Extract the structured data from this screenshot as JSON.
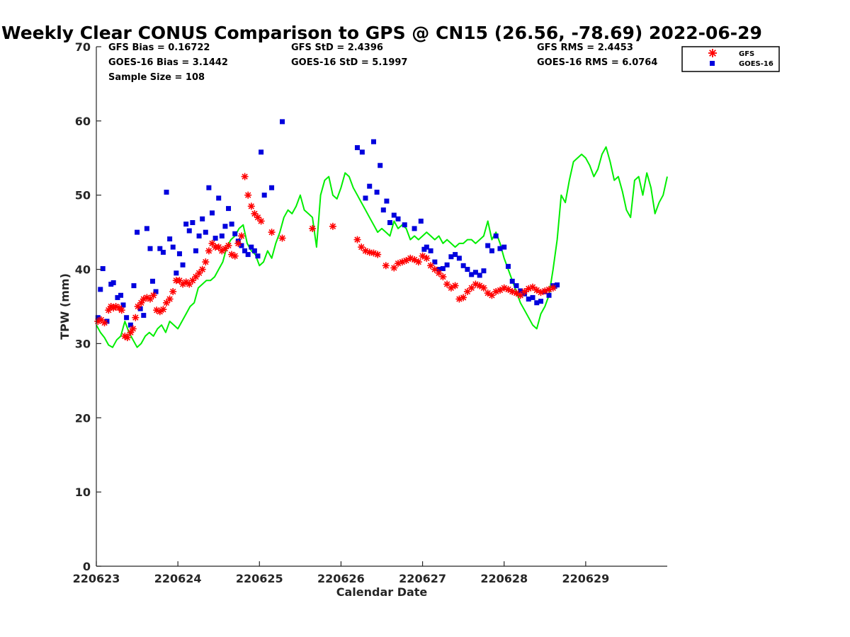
{
  "chart_data": {
    "type": "scatter",
    "title": "Weekly Clear CONUS Comparison to GPS @ CN15 (26.56, -78.69) 2022-06-29",
    "xlabel": "Calendar Date",
    "ylabel": "TPW (mm)",
    "xlim": [
      0,
      7
    ],
    "ylim": [
      0,
      70
    ],
    "x_ticks": [
      0,
      1,
      2,
      3,
      4,
      5,
      6
    ],
    "x_tick_labels": [
      "220623",
      "220624",
      "220625",
      "220626",
      "220627",
      "220628",
      "220629"
    ],
    "y_ticks": [
      0,
      10,
      20,
      30,
      40,
      50,
      60,
      70
    ],
    "grid": false,
    "legend_position": "top-right, outside plot",
    "stats": {
      "gfs_bias": "GFS Bias = 0.16722",
      "goes_bias": "GOES-16 Bias = 3.1442",
      "sample_size": "Sample Size = 108",
      "gfs_std": "GFS StD = 2.4396",
      "goes_std": "GOES-16 StD = 5.1997",
      "gfs_rms": "GFS RMS = 2.4453",
      "goes_rms": "GOES-16 RMS = 6.0764"
    },
    "gps_line": {
      "color": "#00ee00",
      "x": [
        0.0,
        0.05,
        0.1,
        0.15,
        0.2,
        0.25,
        0.3,
        0.35,
        0.4,
        0.45,
        0.5,
        0.55,
        0.6,
        0.65,
        0.7,
        0.75,
        0.8,
        0.85,
        0.9,
        0.95,
        1.0,
        1.05,
        1.1,
        1.15,
        1.2,
        1.25,
        1.3,
        1.35,
        1.4,
        1.45,
        1.5,
        1.55,
        1.6,
        1.65,
        1.7,
        1.75,
        1.8,
        1.85,
        1.9,
        1.95,
        2.0,
        2.05,
        2.1,
        2.15,
        2.2,
        2.25,
        2.3,
        2.35,
        2.4,
        2.45,
        2.5,
        2.55,
        2.6,
        2.65,
        2.7,
        2.75,
        2.8,
        2.85,
        2.9,
        2.95,
        3.0,
        3.05,
        3.1,
        3.15,
        3.2,
        3.25,
        3.3,
        3.35,
        3.4,
        3.45,
        3.5,
        3.55,
        3.6,
        3.65,
        3.7,
        3.75,
        3.8,
        3.85,
        3.9,
        3.95,
        4.0,
        4.05,
        4.1,
        4.15,
        4.2,
        4.25,
        4.3,
        4.35,
        4.4,
        4.45,
        4.5,
        4.55,
        4.6,
        4.65,
        4.7,
        4.75,
        4.8,
        4.85,
        4.9,
        4.95,
        5.0,
        5.05,
        5.1,
        5.15,
        5.2,
        5.25,
        5.3,
        5.35,
        5.4,
        5.45,
        5.5,
        5.55,
        5.6,
        5.65,
        5.7,
        5.75,
        5.8,
        5.85,
        5.9,
        5.95,
        6.0,
        6.05,
        6.1,
        6.15,
        6.2,
        6.25,
        6.3,
        6.35,
        6.4,
        6.45,
        6.5,
        6.55,
        6.6,
        6.65,
        6.7,
        6.75,
        6.8,
        6.85,
        6.9,
        6.95,
        7.0
      ],
      "values": [
        32.5,
        31.5,
        30.8,
        29.8,
        29.5,
        30.5,
        31.0,
        33.0,
        31.5,
        30.5,
        29.5,
        30.0,
        31.0,
        31.5,
        31.0,
        32.0,
        32.5,
        31.5,
        33.0,
        32.5,
        32.0,
        33.0,
        34.0,
        35.0,
        35.5,
        37.5,
        38.0,
        38.5,
        38.5,
        39.0,
        40.0,
        41.0,
        43.0,
        44.0,
        44.5,
        45.5,
        46.0,
        43.5,
        42.5,
        42.0,
        40.5,
        41.0,
        42.5,
        41.5,
        43.5,
        45.0,
        47.0,
        48.0,
        47.5,
        48.5,
        50.0,
        48.0,
        47.5,
        47.0,
        43.0,
        50.0,
        52.0,
        52.5,
        50.0,
        49.5,
        51.0,
        53.0,
        52.5,
        51.0,
        50.0,
        49.0,
        48.0,
        47.0,
        46.0,
        45.0,
        45.5,
        45.0,
        44.5,
        46.5,
        45.5,
        46.0,
        45.5,
        44.0,
        44.5,
        44.0,
        44.5,
        45.0,
        44.5,
        44.0,
        44.5,
        43.5,
        44.0,
        43.5,
        43.0,
        43.5,
        43.5,
        44.0,
        44.0,
        43.5,
        44.0,
        44.5,
        46.5,
        44.0,
        45.0,
        43.5,
        41.5,
        40.0,
        38.5,
        37.0,
        35.5,
        34.5,
        33.5,
        32.5,
        32.0,
        34.0,
        35.0,
        36.5,
        40.0,
        44.0,
        50.0,
        49.0,
        52.0,
        54.5,
        55.0,
        55.5,
        55.0,
        54.0,
        52.5,
        53.5,
        55.5,
        56.5,
        54.5,
        52.0,
        52.5,
        50.5,
        48.0,
        47.0,
        52.0,
        52.5,
        50.0,
        53.0,
        51.0,
        47.5,
        49.0,
        50.0,
        52.5
      ]
    },
    "series": [
      {
        "name": "GFS",
        "color": "#ff0000",
        "marker": "asterisk",
        "x": [
          0.02,
          0.06,
          0.1,
          0.15,
          0.18,
          0.21,
          0.24,
          0.28,
          0.31,
          0.35,
          0.38,
          0.42,
          0.45,
          0.48,
          0.51,
          0.55,
          0.58,
          0.62,
          0.66,
          0.7,
          0.74,
          0.78,
          0.82,
          0.86,
          0.9,
          0.94,
          0.98,
          1.02,
          1.06,
          1.1,
          1.14,
          1.18,
          1.22,
          1.26,
          1.3,
          1.34,
          1.38,
          1.42,
          1.46,
          1.5,
          1.54,
          1.58,
          1.62,
          1.66,
          1.7,
          1.74,
          1.78,
          1.82,
          1.86,
          1.9,
          1.94,
          1.98,
          2.02,
          2.15,
          2.28,
          2.65,
          2.9,
          3.2,
          3.25,
          3.3,
          3.35,
          3.4,
          3.45,
          3.55,
          3.65,
          3.7,
          3.75,
          3.8,
          3.85,
          3.9,
          3.95,
          4.0,
          4.05,
          4.1,
          4.15,
          4.2,
          4.25,
          4.3,
          4.35,
          4.4,
          4.45,
          4.5,
          4.55,
          4.6,
          4.65,
          4.7,
          4.75,
          4.8,
          4.85,
          4.9,
          4.95,
          5.0,
          5.05,
          5.1,
          5.15,
          5.2,
          5.25,
          5.3,
          5.35,
          5.4,
          5.45,
          5.5,
          5.55,
          5.6
        ],
        "values": [
          33.0,
          33.2,
          32.8,
          34.5,
          35.0,
          34.8,
          35.0,
          34.8,
          34.5,
          31.0,
          30.8,
          31.5,
          32.0,
          33.5,
          35.0,
          35.5,
          36.0,
          36.2,
          36.0,
          36.5,
          34.5,
          34.3,
          34.6,
          35.5,
          36.0,
          37.0,
          38.5,
          38.5,
          38.0,
          38.3,
          38.0,
          38.5,
          39.0,
          39.5,
          40.0,
          41.0,
          42.5,
          43.5,
          43.0,
          43.0,
          42.5,
          42.8,
          43.2,
          42.0,
          41.8,
          43.5,
          44.5,
          52.5,
          50.0,
          48.5,
          47.5,
          47.0,
          46.5,
          45.0,
          44.2,
          45.5,
          45.8,
          44.0,
          43.0,
          42.5,
          42.3,
          42.2,
          42.0,
          40.5,
          40.2,
          40.8,
          41.0,
          41.2,
          41.5,
          41.3,
          41.0,
          41.8,
          41.5,
          40.5,
          40.0,
          39.5,
          39.0,
          38.0,
          37.5,
          37.8,
          36.0,
          36.2,
          37.0,
          37.5,
          38.0,
          37.8,
          37.5,
          36.8,
          36.5,
          37.0,
          37.2,
          37.5,
          37.3,
          37.0,
          36.8,
          36.5,
          37.0,
          37.4,
          37.6,
          37.2,
          36.9,
          37.1,
          37.3,
          37.5
        ]
      },
      {
        "name": "GOES-16",
        "color": "#0000dd",
        "marker": "square",
        "x": [
          0.02,
          0.05,
          0.08,
          0.13,
          0.18,
          0.21,
          0.26,
          0.3,
          0.33,
          0.37,
          0.42,
          0.46,
          0.5,
          0.54,
          0.58,
          0.62,
          0.66,
          0.69,
          0.73,
          0.78,
          0.82,
          0.86,
          0.9,
          0.94,
          0.98,
          1.02,
          1.06,
          1.1,
          1.14,
          1.18,
          1.22,
          1.26,
          1.3,
          1.34,
          1.38,
          1.42,
          1.46,
          1.5,
          1.54,
          1.58,
          1.62,
          1.66,
          1.7,
          1.74,
          1.78,
          1.82,
          1.86,
          1.9,
          1.94,
          1.98,
          2.02,
          2.06,
          2.15,
          2.28,
          3.2,
          3.26,
          3.3,
          3.35,
          3.4,
          3.44,
          3.48,
          3.52,
          3.56,
          3.6,
          3.65,
          3.7,
          3.78,
          3.9,
          3.98,
          4.02,
          4.05,
          4.1,
          4.15,
          4.2,
          4.25,
          4.3,
          4.35,
          4.4,
          4.45,
          4.5,
          4.55,
          4.6,
          4.65,
          4.7,
          4.75,
          4.8,
          4.85,
          4.9,
          4.95,
          5.0,
          5.05,
          5.1,
          5.15,
          5.2,
          5.25,
          5.3,
          5.35,
          5.4,
          5.45,
          5.5,
          5.55,
          5.6,
          5.62,
          5.65
        ],
        "values": [
          33.5,
          37.3,
          40.1,
          33.0,
          38.0,
          38.2,
          36.2,
          36.5,
          35.2,
          33.5,
          32.5,
          37.8,
          45.0,
          34.7,
          33.8,
          45.5,
          42.8,
          38.4,
          37.0,
          42.8,
          42.3,
          50.4,
          44.1,
          43.0,
          39.5,
          42.1,
          40.6,
          46.1,
          45.2,
          46.3,
          42.5,
          44.5,
          46.8,
          45.0,
          51.0,
          47.6,
          44.2,
          49.6,
          44.5,
          45.8,
          48.2,
          46.1,
          44.8,
          43.8,
          43.2,
          42.5,
          42.0,
          43.0,
          42.5,
          41.8,
          55.8,
          50.0,
          51.0,
          59.9,
          56.4,
          55.8,
          49.6,
          51.2,
          57.2,
          50.4,
          54.0,
          48.0,
          49.2,
          46.3,
          47.3,
          46.8,
          46.0,
          45.5,
          46.5,
          42.7,
          43.0,
          42.5,
          41.0,
          40.0,
          40.1,
          40.6,
          41.7,
          42.0,
          41.5,
          40.5,
          40.0,
          39.3,
          39.6,
          39.2,
          39.8,
          43.2,
          42.5,
          44.5,
          42.8,
          43.0,
          40.4,
          38.4,
          37.8,
          37.1,
          36.7,
          36.0,
          36.2,
          35.5,
          35.7,
          37.0,
          36.5,
          37.8,
          37.7,
          37.9
        ]
      }
    ]
  }
}
